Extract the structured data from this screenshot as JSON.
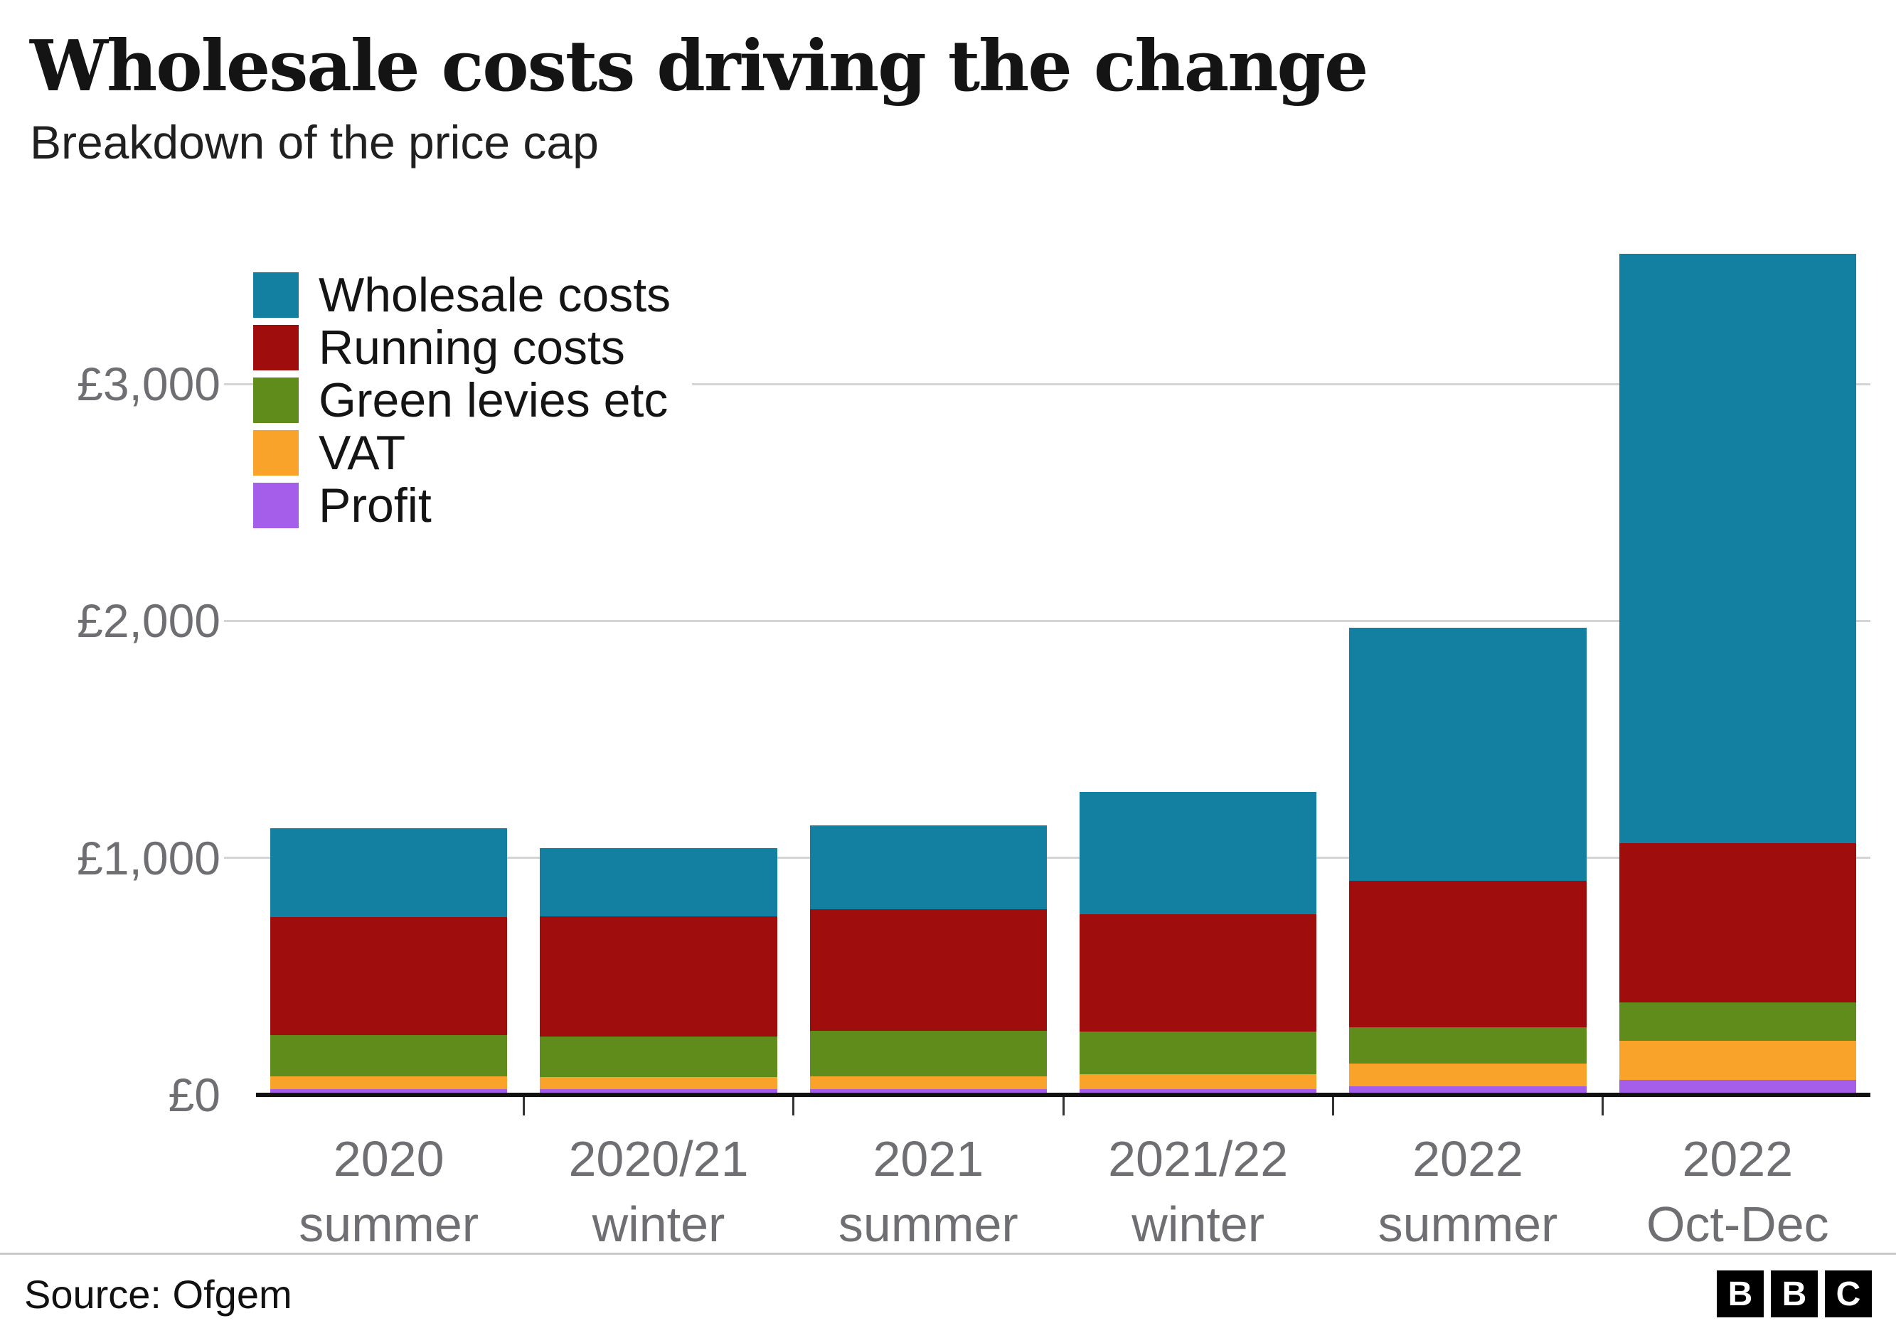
{
  "chart_data": {
    "type": "bar",
    "stacked": true,
    "title": "Wholesale costs driving the change",
    "subtitle": "Breakdown of the price cap",
    "currency": "£",
    "grid": "horizontal",
    "legend_position": "top-left",
    "categories": [
      {
        "line1": "2020",
        "line2": "summer"
      },
      {
        "line1": "2020/21",
        "line2": "winter"
      },
      {
        "line1": "2021",
        "line2": "summer"
      },
      {
        "line1": "2021/22",
        "line2": "winter"
      },
      {
        "line1": "2022",
        "line2": "summer"
      },
      {
        "line1": "2022",
        "line2": "Oct-Dec"
      }
    ],
    "series": [
      {
        "name": "Wholesale costs",
        "color": "#1380A1",
        "values": [
          375,
          290,
          354,
          516,
          1067,
          2488
        ]
      },
      {
        "name": "Running costs",
        "color": "#a00d0d",
        "values": [
          500,
          505,
          515,
          495,
          620,
          672
        ]
      },
      {
        "name": "Green levies etc",
        "color": "#5f8c1b",
        "values": [
          172,
          172,
          190,
          180,
          153,
          160
        ]
      },
      {
        "name": "VAT",
        "color": "#faa32b",
        "values": [
          54,
          50,
          54,
          61,
          94,
          166
        ]
      },
      {
        "name": "Profit",
        "color": "#a55eea",
        "values": [
          25,
          25,
          25,
          25,
          37,
          63
        ]
      }
    ],
    "totals": [
      1126,
      1042,
      1138,
      1277,
      1971,
      3549
    ],
    "y_axis": {
      "ticks": [
        0,
        1000,
        2000,
        3000
      ],
      "tick_labels": [
        "£0",
        "£1,000",
        "£2,000",
        "£3,000"
      ],
      "max": 3600
    }
  },
  "footer": {
    "source": "Source: Ofgem",
    "logo_letters": [
      "B",
      "B",
      "C"
    ]
  }
}
